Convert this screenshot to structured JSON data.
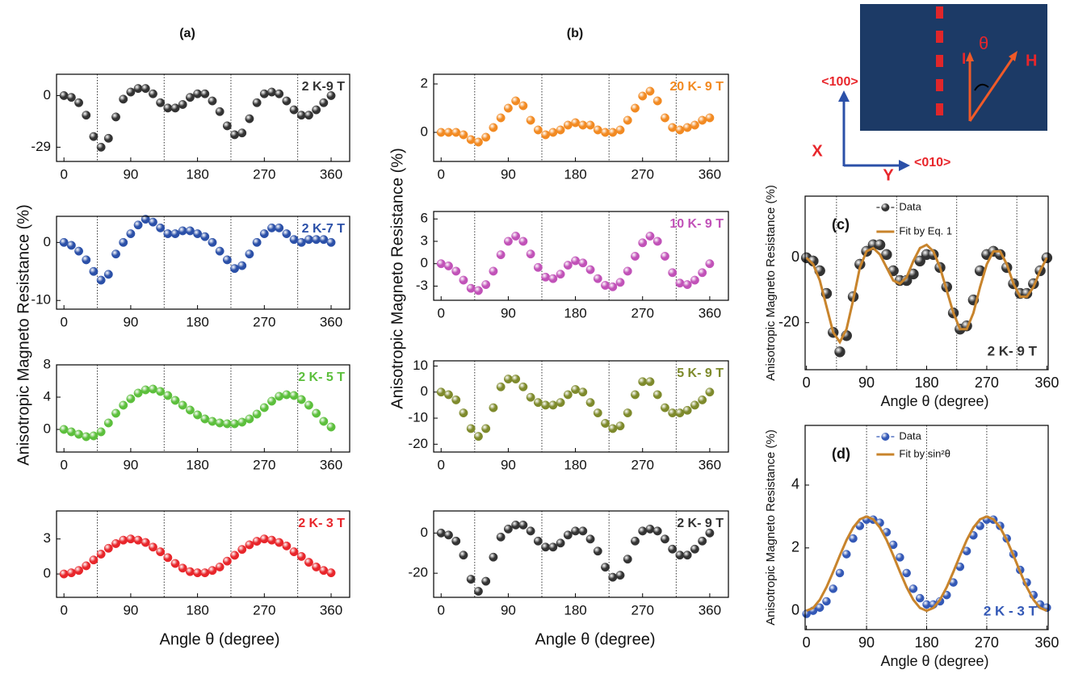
{
  "groups": [
    {
      "label": "(a)",
      "ylabel": "Anisotropic Magneto Resistance (%)",
      "xlabel": "Angle θ (degree)"
    },
    {
      "label": "(b)",
      "ylabel": "Anisotropic Magneto Resistance (%)",
      "xlabel": "Angle θ (degree)"
    }
  ],
  "diagram": {
    "current": "I",
    "angle": "θ",
    "field": "H",
    "axis_x_dir": "<100>",
    "axis_x": "X",
    "axis_y": "Y",
    "axis_y_dir": "<010>"
  },
  "chart_data": [
    {
      "type": "scatter",
      "xlim": [
        -10,
        385
      ],
      "ylim": [
        -37,
        12
      ],
      "xticks": [
        0,
        90,
        180,
        270,
        360
      ],
      "yticks": [
        -29,
        0
      ],
      "vlines": [
        45,
        135,
        225,
        315
      ],
      "legend": "upper right",
      "x": [
        0,
        10,
        20,
        30,
        40,
        50,
        60,
        70,
        80,
        90,
        100,
        110,
        120,
        130,
        140,
        150,
        160,
        170,
        180,
        190,
        200,
        210,
        220,
        230,
        240,
        250,
        260,
        270,
        280,
        290,
        300,
        310,
        320,
        330,
        340,
        350,
        360
      ],
      "series": [
        {
          "name": "2 K-9 T",
          "color": "#333333",
          "mode": "markers",
          "values": [
            0,
            -1,
            -4,
            -11,
            -23,
            -29,
            -24,
            -12,
            -2,
            2,
            4,
            4,
            1,
            -4,
            -7,
            -7,
            -5,
            -1,
            1,
            1,
            -3,
            -9,
            -17,
            -22,
            -21,
            -13,
            -4,
            1,
            2,
            1,
            -3,
            -8,
            -11,
            -11,
            -8,
            -4,
            0
          ]
        }
      ]
    },
    {
      "type": "scatter",
      "xlim": [
        -10,
        385
      ],
      "ylim": [
        -11.5,
        4.5
      ],
      "xticks": [
        0,
        90,
        180,
        270,
        360
      ],
      "yticks": [
        -10,
        0
      ],
      "vlines": [
        45,
        135,
        225,
        315
      ],
      "legend": "upper right",
      "x": [
        0,
        10,
        20,
        30,
        40,
        50,
        60,
        70,
        80,
        90,
        100,
        110,
        120,
        130,
        140,
        150,
        160,
        170,
        180,
        190,
        200,
        210,
        220,
        230,
        240,
        250,
        260,
        270,
        280,
        290,
        300,
        310,
        320,
        330,
        340,
        350,
        360
      ],
      "series": [
        {
          "name": "2 K-7 T",
          "color": "#2b50a8",
          "mode": "markers",
          "values": [
            0,
            -0.5,
            -1.5,
            -3,
            -5,
            -6.5,
            -5.5,
            -2,
            0,
            1.5,
            3,
            4,
            3.5,
            2.5,
            1.5,
            1.5,
            2,
            2,
            1.5,
            1,
            0,
            -1.5,
            -3,
            -4.5,
            -4,
            -2,
            0,
            1.5,
            2.5,
            2.5,
            1.5,
            0.5,
            0,
            0.5,
            0.5,
            0.5,
            0
          ]
        }
      ]
    },
    {
      "type": "scatter",
      "xlim": [
        -10,
        385
      ],
      "ylim": [
        -2.8,
        8
      ],
      "xticks": [
        0,
        90,
        180,
        270,
        360
      ],
      "yticks": [
        0,
        4,
        8
      ],
      "vlines": [
        45,
        135,
        225,
        315
      ],
      "legend": "upper right",
      "x": [
        0,
        10,
        20,
        30,
        40,
        50,
        60,
        70,
        80,
        90,
        100,
        110,
        120,
        130,
        140,
        150,
        160,
        170,
        180,
        190,
        200,
        210,
        220,
        230,
        240,
        250,
        260,
        270,
        280,
        290,
        300,
        310,
        320,
        330,
        340,
        350,
        360
      ],
      "series": [
        {
          "name": "2 K- 5 T",
          "color": "#5cbf3c",
          "mode": "markers",
          "values": [
            0,
            -0.3,
            -0.6,
            -0.9,
            -0.8,
            -0.3,
            0.8,
            2,
            3,
            3.8,
            4.5,
            4.9,
            5,
            4.7,
            4.2,
            3.6,
            3,
            2.4,
            1.8,
            1.3,
            1,
            0.8,
            0.7,
            0.7,
            0.9,
            1.3,
            1.9,
            2.7,
            3.5,
            4.1,
            4.3,
            4.2,
            3.7,
            3,
            2,
            1,
            0.3
          ]
        }
      ]
    },
    {
      "type": "scatter",
      "xlim": [
        -10,
        385
      ],
      "ylim": [
        -2,
        5.4
      ],
      "xticks": [
        0,
        90,
        180,
        270,
        360
      ],
      "yticks": [
        0,
        3
      ],
      "vlines": [
        45,
        135,
        225,
        315
      ],
      "legend": "upper right",
      "x": [
        0,
        10,
        20,
        30,
        40,
        50,
        60,
        70,
        80,
        90,
        100,
        110,
        120,
        130,
        140,
        150,
        160,
        170,
        180,
        190,
        200,
        210,
        220,
        230,
        240,
        250,
        260,
        270,
        280,
        290,
        300,
        310,
        320,
        330,
        340,
        350,
        360
      ],
      "series": [
        {
          "name": "2 K- 3 T",
          "color": "#e8262b",
          "mode": "markers",
          "values": [
            0,
            0.1,
            0.3,
            0.7,
            1.2,
            1.7,
            2.2,
            2.6,
            2.9,
            3,
            2.9,
            2.7,
            2.3,
            1.9,
            1.4,
            0.9,
            0.5,
            0.2,
            0.1,
            0.1,
            0.3,
            0.6,
            1.1,
            1.6,
            2.1,
            2.5,
            2.8,
            3,
            2.9,
            2.7,
            2.4,
            1.9,
            1.5,
            1,
            0.6,
            0.3,
            0.1
          ]
        }
      ]
    },
    {
      "type": "scatter",
      "xlim": [
        -10,
        385
      ],
      "ylim": [
        -1.2,
        2.4
      ],
      "xticks": [
        0,
        90,
        180,
        270,
        360
      ],
      "yticks": [
        0,
        2
      ],
      "vlines": [
        45,
        135,
        225,
        315
      ],
      "legend": "upper right",
      "x": [
        0,
        10,
        20,
        30,
        40,
        50,
        60,
        70,
        80,
        90,
        100,
        110,
        120,
        130,
        140,
        150,
        160,
        170,
        180,
        190,
        200,
        210,
        220,
        230,
        240,
        250,
        260,
        270,
        280,
        290,
        300,
        310,
        320,
        330,
        340,
        350,
        360
      ],
      "series": [
        {
          "name": "20 K- 9 T",
          "color": "#f28a22",
          "mode": "markers",
          "values": [
            0,
            0,
            0,
            -0.1,
            -0.3,
            -0.4,
            -0.2,
            0.2,
            0.6,
            1,
            1.3,
            1.1,
            0.5,
            0.1,
            -0.1,
            0,
            0.1,
            0.3,
            0.4,
            0.3,
            0.3,
            0.1,
            0,
            0,
            0.1,
            0.5,
            1,
            1.5,
            1.7,
            1.3,
            0.6,
            0.2,
            0.1,
            0.2,
            0.3,
            0.5,
            0.6
          ]
        }
      ]
    },
    {
      "type": "scatter",
      "xlim": [
        -10,
        385
      ],
      "ylim": [
        -4.9,
        7
      ],
      "xticks": [
        0,
        90,
        180,
        270,
        360
      ],
      "yticks": [
        -3,
        0,
        3,
        6
      ],
      "vlines": [
        45,
        135,
        225,
        315
      ],
      "legend": "upper right",
      "x": [
        0,
        10,
        20,
        30,
        40,
        50,
        60,
        70,
        80,
        90,
        100,
        110,
        120,
        130,
        140,
        150,
        160,
        170,
        180,
        190,
        200,
        210,
        220,
        230,
        240,
        250,
        260,
        270,
        280,
        290,
        300,
        310,
        320,
        330,
        340,
        350,
        360
      ],
      "series": [
        {
          "name": "10 K- 9 T",
          "color": "#c152b8",
          "mode": "markers",
          "values": [
            0,
            -0.3,
            -1,
            -2.2,
            -3.3,
            -3.6,
            -2.8,
            -1,
            1.2,
            3,
            3.7,
            3,
            1.3,
            -0.5,
            -1.8,
            -2,
            -1.4,
            -0.2,
            0.4,
            0.1,
            -0.8,
            -2,
            -2.9,
            -3.1,
            -2.5,
            -1,
            1,
            2.8,
            3.7,
            3,
            1,
            -1.2,
            -2.6,
            -2.8,
            -2.2,
            -1.2,
            0
          ]
        }
      ]
    },
    {
      "type": "scatter",
      "xlim": [
        -10,
        385
      ],
      "ylim": [
        -23,
        12
      ],
      "xticks": [
        0,
        90,
        180,
        270,
        360
      ],
      "yticks": [
        -20,
        -10,
        0,
        10
      ],
      "vlines": [
        45,
        135,
        225,
        315
      ],
      "legend": "upper right",
      "x": [
        0,
        10,
        20,
        30,
        40,
        50,
        60,
        70,
        80,
        90,
        100,
        110,
        120,
        130,
        140,
        150,
        160,
        170,
        180,
        190,
        200,
        210,
        220,
        230,
        240,
        250,
        260,
        270,
        280,
        290,
        300,
        310,
        320,
        330,
        340,
        350,
        360
      ],
      "series": [
        {
          "name": "5 K- 9 T",
          "color": "#7e8a2c",
          "mode": "markers",
          "values": [
            0,
            -1,
            -3,
            -8,
            -14,
            -17,
            -14,
            -6,
            2,
            5,
            5,
            2,
            -2,
            -4,
            -5,
            -5,
            -4,
            -1,
            1,
            0,
            -4,
            -8,
            -12,
            -14,
            -13,
            -8,
            -1,
            4,
            4,
            -1,
            -6,
            -8,
            -8,
            -7,
            -5,
            -3,
            0
          ]
        }
      ]
    },
    {
      "type": "scatter",
      "xlim": [
        -10,
        385
      ],
      "ylim": [
        -32,
        11
      ],
      "xticks": [
        0,
        90,
        180,
        270,
        360
      ],
      "yticks": [
        -20,
        0
      ],
      "vlines": [
        45,
        135,
        225,
        315
      ],
      "legend": "upper right",
      "x": [
        0,
        10,
        20,
        30,
        40,
        50,
        60,
        70,
        80,
        90,
        100,
        110,
        120,
        130,
        140,
        150,
        160,
        170,
        180,
        190,
        200,
        210,
        220,
        230,
        240,
        250,
        260,
        270,
        280,
        290,
        300,
        310,
        320,
        330,
        340,
        350,
        360
      ],
      "series": [
        {
          "name": "2 K- 9 T",
          "color": "#333333",
          "mode": "markers",
          "values": [
            0,
            -1,
            -4,
            -11,
            -23,
            -29,
            -24,
            -12,
            -2,
            2,
            4,
            4,
            1,
            -4,
            -7,
            -7,
            -5,
            -1,
            1,
            1,
            -3,
            -9,
            -17,
            -22,
            -21,
            -13,
            -4,
            1,
            2,
            1,
            -3,
            -8,
            -11,
            -11,
            -8,
            -4,
            0
          ]
        }
      ]
    },
    {
      "type": "scatter",
      "panel_label": "(c)",
      "annotation": "2 K- 9 T",
      "ylabel": "Anisotropic Magneto Resistance (%)",
      "xlabel": "Angle θ (degree)",
      "xlim": [
        -2,
        362
      ],
      "ylim": [
        -34.5,
        19
      ],
      "xticks": [
        0,
        90,
        180,
        270,
        360
      ],
      "yticks": [
        -20,
        0
      ],
      "vlines": [
        45,
        135,
        225,
        315
      ],
      "legend": "upper center",
      "x": [
        0,
        10,
        20,
        30,
        40,
        50,
        60,
        70,
        80,
        90,
        100,
        110,
        120,
        130,
        140,
        150,
        160,
        170,
        180,
        190,
        200,
        210,
        220,
        230,
        240,
        250,
        260,
        270,
        280,
        290,
        300,
        310,
        320,
        330,
        340,
        350,
        360
      ],
      "series": [
        {
          "name": "Data",
          "color": "#333333",
          "mode": "markers",
          "values": [
            0,
            -1,
            -4,
            -11,
            -23,
            -29,
            -24,
            -12,
            -2,
            2,
            4,
            4,
            1,
            -4,
            -7,
            -7,
            -5,
            -1,
            1,
            1,
            -3,
            -9,
            -17,
            -22,
            -21,
            -13,
            -4,
            1,
            2,
            1,
            -3,
            -8,
            -11,
            -11,
            -8,
            -4,
            0
          ]
        },
        {
          "name": "Fit by Eq. 1",
          "color": "#c8842c",
          "mode": "lines",
          "values": [
            0,
            -2,
            -7,
            -15,
            -23,
            -26,
            -22,
            -13,
            -3,
            2,
            3,
            1,
            -3,
            -7,
            -8,
            -6,
            -1,
            3,
            4,
            2,
            -3,
            -10,
            -17,
            -22,
            -22,
            -17,
            -9,
            -2,
            2,
            2,
            -2,
            -8,
            -12,
            -12,
            -9,
            -4,
            0
          ]
        }
      ]
    },
    {
      "type": "scatter",
      "panel_label": "(d)",
      "annotation": "2 K - 3 T",
      "ylabel": "Anisotropic Magneto Resistance (%)",
      "xlabel": "Angle θ (degree)",
      "xlim": [
        -2,
        362
      ],
      "ylim": [
        -0.6,
        5.9
      ],
      "xticks": [
        0,
        90,
        180,
        270,
        360
      ],
      "yticks": [
        0,
        2,
        4
      ],
      "vlines": [
        90,
        180,
        270
      ],
      "legend": "upper center",
      "x": [
        0,
        10,
        20,
        30,
        40,
        50,
        60,
        70,
        80,
        90,
        100,
        110,
        120,
        130,
        140,
        150,
        160,
        170,
        180,
        190,
        200,
        210,
        220,
        230,
        240,
        250,
        260,
        270,
        280,
        290,
        300,
        310,
        320,
        330,
        340,
        350,
        360
      ],
      "series": [
        {
          "name": "Data",
          "color": "#3358b6",
          "mode": "markers",
          "values": [
            -0.1,
            0,
            0.1,
            0.3,
            0.7,
            1.2,
            1.8,
            2.3,
            2.7,
            2.9,
            2.9,
            2.8,
            2.5,
            2.1,
            1.7,
            1.2,
            0.7,
            0.4,
            0.2,
            0.2,
            0.3,
            0.5,
            0.9,
            1.4,
            1.9,
            2.4,
            2.7,
            2.9,
            2.9,
            2.7,
            2.3,
            1.8,
            1.3,
            0.9,
            0.5,
            0.2,
            0.1
          ]
        },
        {
          "name": "Fit by sin²θ",
          "color": "#c8842c",
          "mode": "lines",
          "values": [
            0,
            0.09,
            0.35,
            0.75,
            1.24,
            1.76,
            2.25,
            2.65,
            2.91,
            3,
            2.91,
            2.65,
            2.25,
            1.76,
            1.24,
            0.75,
            0.35,
            0.09,
            0,
            0.09,
            0.35,
            0.75,
            1.24,
            1.76,
            2.25,
            2.65,
            2.91,
            3,
            2.91,
            2.65,
            2.25,
            1.76,
            1.24,
            0.75,
            0.35,
            0.09,
            0
          ]
        }
      ]
    }
  ]
}
